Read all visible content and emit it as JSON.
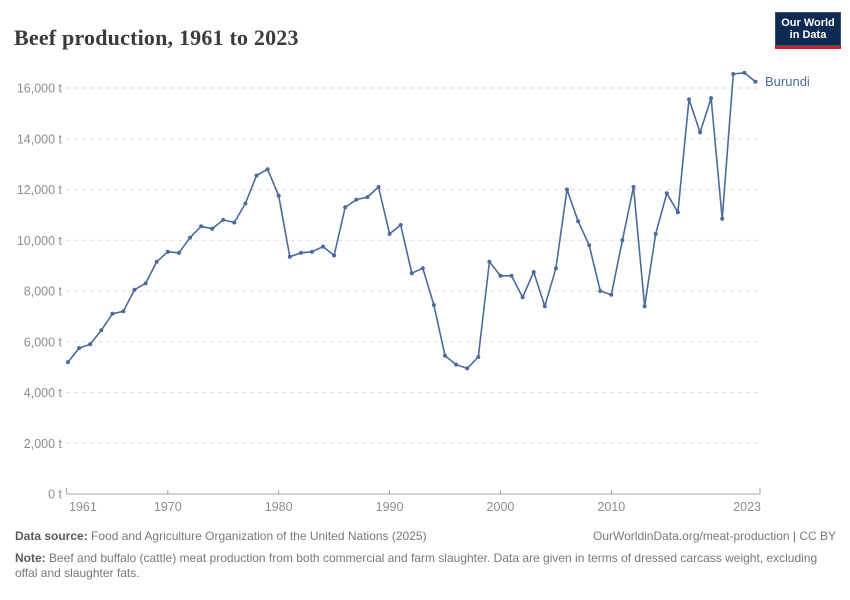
{
  "header": {
    "title": "Beef production, 1961 to 2023",
    "logo": {
      "line1": "Our World",
      "line2": "in Data"
    }
  },
  "chart": {
    "entity_label": "Burundi"
  },
  "footer": {
    "source_label": "Data source:",
    "source_text": " Food and Agriculture Organization of the United Nations (2025)",
    "link_text": "OurWorldinData.org/meat-production | CC BY",
    "note_label": "Note:",
    "note_text": " Beef and buffalo (cattle) meat production from both commercial and farm slaughter. Data are given in terms of dressed carcass weight, excluding offal and slaughter fats."
  },
  "colors": {
    "line": "#4C6A9C",
    "grid": "#dcdcdc",
    "axis": "#a6a6a6",
    "tick_text": "#8e8e8e",
    "logo_bg": "#0e2a52",
    "logo_red": "#c9252b"
  },
  "chart_data": {
    "type": "line",
    "title": "Beef production, 1961 to 2023",
    "unit": "t",
    "grid": "horizontal-dashed",
    "legend_position": "end-of-line-label",
    "xlim": [
      1961,
      2023
    ],
    "ylim": [
      0,
      16000
    ],
    "yticks": [
      0,
      2000,
      4000,
      6000,
      8000,
      10000,
      12000,
      14000,
      16000
    ],
    "ytick_labels": [
      "0 t",
      "2,000 t",
      "4,000 t",
      "6,000 t",
      "8,000 t",
      "10,000 t",
      "12,000 t",
      "14,000 t",
      "16,000 t"
    ],
    "xticks": [
      1961,
      1970,
      1980,
      1990,
      2000,
      2010,
      2023
    ],
    "xtick_labels": [
      "1961",
      "1970",
      "1980",
      "1990",
      "2000",
      "2010",
      "2023"
    ],
    "series": [
      {
        "name": "Burundi",
        "x": [
          1961,
          1962,
          1963,
          1964,
          1965,
          1966,
          1967,
          1968,
          1969,
          1970,
          1971,
          1972,
          1973,
          1974,
          1975,
          1976,
          1977,
          1978,
          1979,
          1980,
          1981,
          1982,
          1983,
          1984,
          1985,
          1986,
          1987,
          1988,
          1989,
          1990,
          1991,
          1992,
          1993,
          1994,
          1995,
          1996,
          1997,
          1998,
          1999,
          2000,
          2001,
          2002,
          2003,
          2004,
          2005,
          2006,
          2007,
          2008,
          2009,
          2010,
          2011,
          2012,
          2013,
          2014,
          2015,
          2016,
          2017,
          2018,
          2019,
          2020,
          2021,
          2022,
          2023
        ],
        "values": [
          5200,
          5750,
          5900,
          6450,
          7100,
          7200,
          8050,
          8300,
          9150,
          9550,
          9500,
          10100,
          10550,
          10450,
          10800,
          10700,
          11450,
          12550,
          12800,
          11750,
          9350,
          9500,
          9550,
          9750,
          9400,
          11300,
          11600,
          11700,
          12100,
          10250,
          10600,
          8700,
          8900,
          7450,
          5450,
          5100,
          4950,
          5400,
          9150,
          8600,
          8600,
          7750,
          8750,
          7400,
          8900,
          12000,
          10750,
          9800,
          8000,
          7850,
          10000,
          12100,
          7400,
          10250,
          11850,
          11100,
          15550,
          14250,
          15600,
          10850,
          16550,
          16600,
          16250
        ]
      }
    ]
  }
}
